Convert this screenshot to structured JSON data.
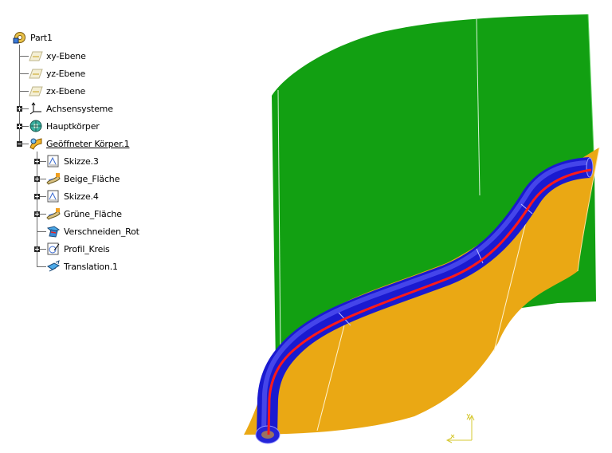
{
  "tree": {
    "root": {
      "label": "Part1",
      "icon": "part-icon"
    },
    "items": [
      {
        "label": "xy-Ebene",
        "icon": "plane-icon"
      },
      {
        "label": "yz-Ebene",
        "icon": "plane-icon"
      },
      {
        "label": "zx-Ebene",
        "icon": "plane-icon"
      },
      {
        "label": "Achsensysteme",
        "icon": "axis-system-icon"
      },
      {
        "label": "Hauptkörper",
        "icon": "body-icon"
      },
      {
        "label": "Geöffneter Körper.1",
        "icon": "open-body-icon"
      }
    ],
    "children": [
      {
        "label": "Skizze.3",
        "icon": "sketch-icon"
      },
      {
        "label": "Beige_Fläche",
        "icon": "surface-icon"
      },
      {
        "label": "Skizze.4",
        "icon": "sketch-icon"
      },
      {
        "label": "Grüne_Fläche",
        "icon": "surface-icon"
      },
      {
        "label": "Verschneiden_Rot",
        "icon": "intersect-icon"
      },
      {
        "label": "Profil_Kreis",
        "icon": "profile-icon"
      },
      {
        "label": "Translation.1",
        "icon": "translation-icon"
      }
    ]
  },
  "viewport": {
    "colors": {
      "green_surface": "#12a012",
      "orange_surface": "#eaa814",
      "blue_tube": "#1a1ad0",
      "red_curve": "#ff1a1a",
      "background": "#ffffff"
    },
    "compass_icon": "axis-compass-icon"
  }
}
